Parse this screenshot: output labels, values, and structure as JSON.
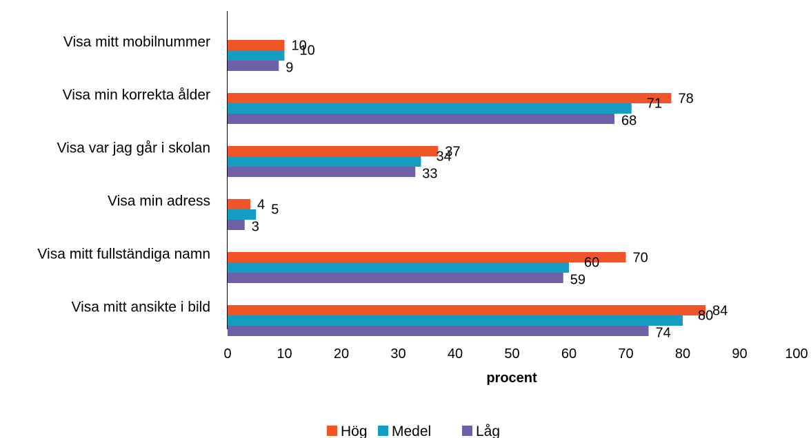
{
  "chart_data": {
    "type": "bar",
    "orientation": "horizontal",
    "categories": [
      "Visa mitt mobilnummer",
      "Visa min korrekta ålder",
      "Visa var jag går i skolan",
      "Visa min adress",
      "Visa mitt fullständiga namn",
      "Visa mitt ansikte i bild"
    ],
    "series": [
      {
        "name": "Hög",
        "color": "#F0552A",
        "values": [
          10,
          78,
          37,
          4,
          70,
          84
        ]
      },
      {
        "name": "Medel",
        "color": "#159CC0",
        "values": [
          10,
          71,
          34,
          5,
          60,
          80
        ]
      },
      {
        "name": "Låg",
        "color": "#6F5FA6",
        "values": [
          9,
          68,
          33,
          3,
          59,
          74
        ]
      }
    ],
    "xlabel": "procent",
    "xlim": [
      0,
      100
    ],
    "xticks": [
      "0",
      "10",
      "20",
      "30",
      "40",
      "50",
      "60",
      "70",
      "80",
      "90",
      "100"
    ],
    "grid": false,
    "legend_position": "bottom"
  }
}
